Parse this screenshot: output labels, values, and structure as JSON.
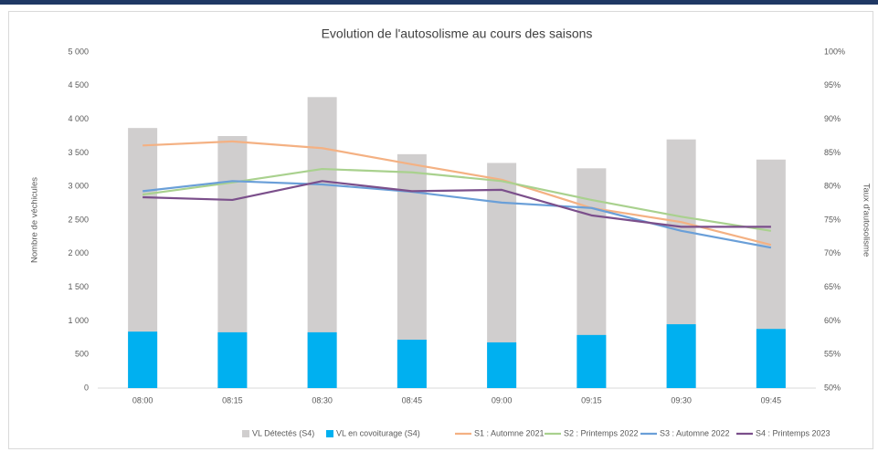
{
  "chart_data": {
    "type": "bar",
    "title": "Evolution de l'autosolisme au cours des saisons",
    "y_label": "Nombre de véchicules",
    "y2_label": "Taux d'autosolisme",
    "categories": [
      "08:00",
      "08:15",
      "08:30",
      "08:45",
      "09:00",
      "09:15",
      "09:30",
      "09:45"
    ],
    "series": [
      {
        "name": "VL Détectés (S4)",
        "type": "bar",
        "color": "#d0cece",
        "values": [
          3870,
          3750,
          4330,
          3480,
          3350,
          3270,
          3700,
          3400
        ]
      },
      {
        "name": "VL en covoiturage (S4)",
        "type": "bar",
        "color": "#00b0f0",
        "values": [
          840,
          830,
          830,
          720,
          680,
          790,
          950,
          880
        ]
      },
      {
        "name": "S1 : Automne 2021",
        "type": "line",
        "axis": "y2",
        "color": "#f4b183",
        "values": [
          86.1,
          86.7,
          85.7,
          83.3,
          81.0,
          76.8,
          74.7,
          71.3
        ]
      },
      {
        "name": "S2 : Printemps 2022",
        "type": "line",
        "axis": "y2",
        "color": "#a9d18e",
        "values": [
          78.8,
          80.6,
          82.6,
          82.1,
          80.8,
          78.0,
          75.5,
          73.4
        ]
      },
      {
        "name": "S3 : Automne 2022",
        "type": "line",
        "axis": "y2",
        "color": "#6a9fd8",
        "values": [
          79.3,
          80.8,
          80.3,
          79.2,
          77.6,
          76.8,
          73.4,
          70.9
        ]
      },
      {
        "name": "S4 : Printemps 2023",
        "type": "line",
        "axis": "y2",
        "color": "#7b4f8b",
        "values": [
          78.4,
          78.0,
          80.8,
          79.3,
          79.5,
          75.7,
          74.0,
          74.0
        ]
      }
    ],
    "ylim": [
      0,
      5000
    ],
    "yticks": [
      0,
      500,
      {
        "value": 1000,
        "label": "1 000"
      },
      {
        "value": 1500,
        "label": "1 500"
      },
      {
        "value": 2000,
        "label": "2 000"
      },
      {
        "value": 2500,
        "label": "2 500"
      },
      {
        "value": 3000,
        "label": "3 000"
      },
      {
        "value": 3500,
        "label": "3 500"
      },
      {
        "value": 4000,
        "label": "4 000"
      },
      {
        "value": 4500,
        "label": "4 500"
      },
      {
        "value": 5000,
        "label": "5 000"
      }
    ],
    "y2lim": [
      50,
      100
    ],
    "y2ticks": [
      {
        "value": 50,
        "label": "50%"
      },
      {
        "value": 55,
        "label": "55%"
      },
      {
        "value": 60,
        "label": "60%"
      },
      {
        "value": 65,
        "label": "65%"
      },
      {
        "value": 70,
        "label": "70%"
      },
      {
        "value": 75,
        "label": "75%"
      },
      {
        "value": 80,
        "label": "80%"
      },
      {
        "value": 85,
        "label": "85%"
      },
      {
        "value": 90,
        "label": "90%"
      },
      {
        "value": 95,
        "label": "95%"
      },
      {
        "value": 100,
        "label": "100%"
      }
    ],
    "grid": false,
    "legend": "bottom"
  }
}
